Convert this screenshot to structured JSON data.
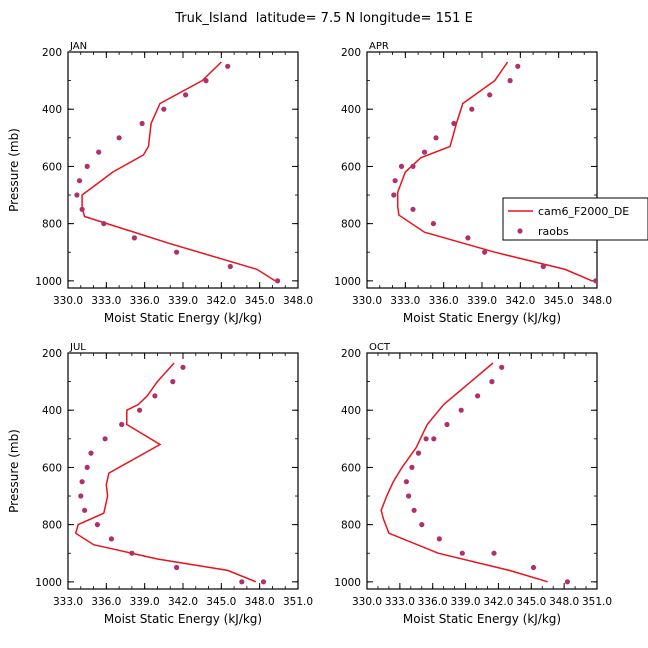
{
  "figure": {
    "title": "Truk_Island  latitude= 7.5 N longitude= 151 E"
  },
  "legend": {
    "model_label": "cam6_F2000_DE",
    "obs_label": "raobs",
    "model_color": "#e8141c",
    "obs_color": "#b0306a"
  },
  "chart_data": [
    {
      "type": "line",
      "panel": "JAN",
      "xlabel": "Moist Static Energy (kJ/kg)",
      "ylabel": "Pressure (mb)",
      "xlim": [
        330.0,
        348.0
      ],
      "ylim": [
        200,
        1025
      ],
      "x_ticks": [
        "330.0",
        "333.0",
        "336.0",
        "339.0",
        "342.0",
        "345.0",
        "348.0"
      ],
      "y_ticks": [
        "200",
        "400",
        "600",
        "800",
        "1000"
      ],
      "series": [
        {
          "name": "cam6_F2000_DE",
          "style": "line",
          "x": [
            342.0,
            340.5,
            337.2,
            336.5,
            336.3,
            335.9,
            333.5,
            332.3,
            331.1,
            331.1,
            331.3,
            338.0,
            344.8,
            346.2
          ],
          "y": [
            235,
            300,
            380,
            450,
            530,
            560,
            620,
            660,
            700,
            745,
            775,
            870,
            960,
            1000
          ]
        },
        {
          "name": "raobs",
          "style": "markers",
          "x": [
            342.5,
            340.8,
            339.2,
            337.5,
            335.8,
            334.0,
            332.4,
            331.5,
            330.9,
            330.7,
            331.1,
            332.8,
            335.2,
            338.5,
            342.7,
            346.4
          ],
          "y": [
            250,
            300,
            350,
            400,
            450,
            500,
            550,
            600,
            650,
            700,
            750,
            800,
            850,
            900,
            950,
            1000
          ]
        }
      ]
    },
    {
      "type": "line",
      "panel": "APR",
      "xlabel": "Moist Static Energy (kJ/kg)",
      "ylabel": "",
      "xlim": [
        330.0,
        348.0
      ],
      "ylim": [
        200,
        1025
      ],
      "x_ticks": [
        "330.0",
        "333.0",
        "336.0",
        "339.0",
        "342.0",
        "345.0",
        "348.0"
      ],
      "y_ticks": [
        "200",
        "400",
        "600",
        "800",
        "1000"
      ],
      "series": [
        {
          "name": "cam6_F2000_DE",
          "style": "line",
          "x": [
            341.0,
            340.0,
            337.5,
            337.0,
            336.5,
            334.2,
            333.0,
            332.4,
            332.4,
            332.5,
            334.5,
            340.0,
            345.5,
            347.6
          ],
          "y": [
            235,
            300,
            380,
            450,
            530,
            570,
            620,
            690,
            740,
            770,
            830,
            900,
            960,
            1000
          ]
        },
        {
          "name": "raobs",
          "style": "markers",
          "x": [
            341.8,
            341.2,
            339.6,
            338.2,
            336.8,
            335.4,
            334.5,
            333.6,
            332.7,
            332.2,
            332.1,
            333.6,
            335.2,
            337.9,
            339.2,
            343.8,
            347.9
          ],
          "y": [
            250,
            300,
            350,
            400,
            450,
            500,
            550,
            600,
            600,
            650,
            700,
            750,
            800,
            850,
            900,
            950,
            1000
          ]
        }
      ]
    },
    {
      "type": "line",
      "panel": "JUL",
      "xlabel": "Moist Static Energy (kJ/kg)",
      "ylabel": "Pressure (mb)",
      "xlim": [
        333.0,
        351.0
      ],
      "ylim": [
        200,
        1025
      ],
      "x_ticks": [
        "333.0",
        "336.0",
        "339.0",
        "342.0",
        "345.0",
        "348.0",
        "351.0"
      ],
      "y_ticks": [
        "200",
        "400",
        "600",
        "800",
        "1000"
      ],
      "series": [
        {
          "name": "cam6_F2000_DE",
          "style": "line",
          "x": [
            341.3,
            340.0,
            339.2,
            338.5,
            337.6,
            337.6,
            340.2,
            336.2,
            336.0,
            336.1,
            335.8,
            333.8,
            333.6,
            335.0,
            340.0,
            345.5,
            347.7
          ],
          "y": [
            235,
            300,
            350,
            380,
            400,
            450,
            520,
            620,
            660,
            700,
            760,
            800,
            830,
            870,
            920,
            960,
            1000
          ]
        },
        {
          "name": "raobs",
          "style": "markers",
          "x": [
            342.0,
            341.2,
            339.8,
            338.6,
            337.2,
            335.9,
            334.8,
            334.5,
            334.1,
            334.0,
            334.3,
            335.3,
            336.4,
            338.0,
            341.5,
            346.6,
            348.3
          ],
          "y": [
            250,
            300,
            350,
            400,
            450,
            500,
            550,
            600,
            650,
            700,
            750,
            800,
            850,
            900,
            950,
            1000,
            1000
          ]
        }
      ]
    },
    {
      "type": "line",
      "panel": "OCT",
      "xlabel": "Moist Static Energy (kJ/kg)",
      "ylabel": "",
      "xlim": [
        330.0,
        351.0
      ],
      "ylim": [
        200,
        1025
      ],
      "x_ticks": [
        "330.0",
        "333.0",
        "336.0",
        "339.0",
        "342.0",
        "345.0",
        "348.0",
        "351.0"
      ],
      "y_ticks": [
        "200",
        "400",
        "600",
        "800",
        "1000"
      ],
      "series": [
        {
          "name": "cam6_F2000_DE",
          "style": "line",
          "x": [
            341.5,
            339.5,
            337.0,
            335.5,
            334.5,
            333.2,
            332.4,
            331.8,
            331.3,
            331.5,
            332.0,
            336.5,
            343.0,
            346.5
          ],
          "y": [
            235,
            300,
            380,
            450,
            530,
            600,
            650,
            700,
            750,
            780,
            830,
            900,
            960,
            1000
          ]
        },
        {
          "name": "raobs",
          "style": "markers",
          "x": [
            342.3,
            341.4,
            340.1,
            338.6,
            337.3,
            336.1,
            335.4,
            334.7,
            334.1,
            333.6,
            333.8,
            334.3,
            335.0,
            336.6,
            338.7,
            341.6,
            345.2,
            348.3
          ],
          "y": [
            250,
            300,
            350,
            400,
            450,
            500,
            500,
            550,
            600,
            650,
            700,
            750,
            800,
            850,
            900,
            900,
            950,
            1000
          ]
        }
      ]
    }
  ]
}
